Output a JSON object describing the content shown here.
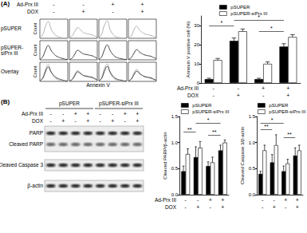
{
  "panels": [
    "(A)",
    "(B)"
  ],
  "chart_data": [
    {
      "type": "line",
      "x_label": "Annexin V",
      "y_label": "Count",
      "row_labels": [
        "pSUPER",
        "pSUPER-siPrx III",
        "Overlay"
      ],
      "treatments": [
        {
          "label": "Ad-Prx III",
          "signs": [
            "-",
            "-",
            "+",
            "+"
          ]
        },
        {
          "label": "DOX",
          "signs": [
            "-",
            "+",
            "-",
            "+"
          ]
        }
      ],
      "x": [
        0,
        1,
        2,
        3,
        4,
        5,
        6,
        7,
        8,
        9,
        10
      ],
      "xlim": [
        0,
        10
      ],
      "ylim": [
        0,
        16
      ],
      "tick_labels": false,
      "series": [
        {
          "color": "#b0b0b0",
          "values": [
            [
              0.5,
              3,
              10,
              14,
              8,
              4,
              2,
              1,
              0.5,
              0.3,
              0.2
            ],
            [
              0.3,
              2,
              6,
              9,
              7,
              5,
              4,
              3.5,
              3,
              2,
              1
            ],
            [
              0.5,
              3.5,
              11,
              14.5,
              7.5,
              3.5,
              1.5,
              0.8,
              0.4,
              0.2,
              0.1
            ],
            [
              0.3,
              2,
              7,
              10,
              7,
              5,
              3.5,
              3,
              2.5,
              1.5,
              0.8
            ]
          ]
        },
        {
          "color": "#404040",
          "values": [
            [
              0.4,
              2.5,
              8,
              12,
              8,
              5,
              3,
              2,
              1.2,
              0.6,
              0.3
            ],
            [
              0.2,
              1.5,
              5,
              8,
              6.5,
              5,
              4.5,
              4,
              3.5,
              2.5,
              1.2
            ],
            [
              0.4,
              2.5,
              8.5,
              12.5,
              8,
              4.5,
              2.5,
              1.5,
              1,
              0.5,
              0.3
            ],
            [
              0.3,
              1.8,
              5.5,
              8.5,
              6.5,
              5,
              4,
              3.5,
              3,
              2,
              1
            ]
          ]
        }
      ]
    },
    {
      "type": "bar",
      "y_label": "Annexin V positive cell (%)",
      "categories": [
        null,
        null,
        null,
        null
      ],
      "ylim": [
        0,
        35
      ],
      "yticks": [
        0,
        10,
        20,
        30
      ],
      "legend": "top",
      "series": [
        {
          "name": "pSUPER",
          "color": "#000000",
          "values": [
            2,
            22,
            2,
            19
          ],
          "errors": [
            0.5,
            1.5,
            0.5,
            1.5
          ]
        },
        {
          "name": "pSUPER-siPrx III",
          "color": "#ffffff",
          "values": [
            12,
            27,
            10,
            24
          ],
          "errors": [
            0.8,
            1.2,
            1,
            1.2
          ]
        }
      ],
      "annotations": [
        {
          "text": "*",
          "from": 0,
          "to": 1,
          "y": 30
        },
        {
          "text": "*",
          "from": 1,
          "to": 3,
          "y": 33
        },
        {
          "text": "*",
          "from": 2,
          "to": 3,
          "y": 27
        }
      ],
      "treatments": [
        {
          "label": "Ad-Prx III",
          "signs": [
            "-",
            "-",
            "+",
            "+"
          ]
        },
        {
          "label": "DOX",
          "signs": [
            "-",
            "+",
            "-",
            "+"
          ]
        }
      ]
    },
    {
      "type": "bar",
      "y_label": "Cleaved PARP/β-actin",
      "categories": [
        null,
        null,
        null,
        null
      ],
      "ylim": [
        0,
        1.5
      ],
      "yticks": [
        {
          "value": 0,
          "label": "0.0"
        },
        {
          "value": 0.5,
          "label": "0.5"
        },
        {
          "value": 1,
          "label": "1.0"
        },
        {
          "value": 1.5,
          "label": "1.5"
        }
      ],
      "legend": "top",
      "series": [
        {
          "name": "pSUPER",
          "color": "#000000",
          "values": [
            0.45,
            0.72,
            0.55,
            0.85
          ],
          "errors": [
            0.1,
            0.2,
            0.08,
            0.1
          ]
        },
        {
          "name": "pSUPER-siPrx III",
          "color": "#ffffff",
          "values": [
            0.78,
            0.9,
            0.62,
            1.0
          ],
          "errors": [
            0.1,
            0.12,
            0.1,
            0.05
          ]
        }
      ],
      "annotations": [
        {
          "text": "**",
          "from": 0,
          "to": 1,
          "y": 1.2
        },
        {
          "text": "*",
          "from": 1,
          "to": 3,
          "y": 1.38
        },
        {
          "text": "**",
          "from": 2,
          "to": 3,
          "y": 1.15
        }
      ],
      "treatments": [
        {
          "label": "Ad-Prx III",
          "signs": [
            "-",
            "-",
            "+",
            "+"
          ]
        },
        {
          "label": "DOX",
          "signs": [
            "-",
            "+",
            "-",
            "+"
          ]
        }
      ]
    },
    {
      "type": "bar",
      "y_label": "Cleaved Caspase 3/β-actin",
      "categories": [
        null,
        null,
        null,
        null
      ],
      "ylim": [
        0,
        1.5
      ],
      "yticks": [
        {
          "value": 0,
          "label": "0.0"
        },
        {
          "value": 0.5,
          "label": "0.5"
        },
        {
          "value": 1,
          "label": "1.0"
        },
        {
          "value": 1.5,
          "label": "1.5"
        }
      ],
      "legend": "top",
      "series": [
        {
          "name": "pSUPER",
          "color": "#000000",
          "values": [
            0.4,
            0.62,
            0.45,
            0.75
          ],
          "errors": [
            0.05,
            0.15,
            0.1,
            0.15
          ]
        },
        {
          "name": "pSUPER-siPrx III",
          "color": "#ffffff",
          "values": [
            0.85,
            0.95,
            0.6,
            0.85
          ],
          "errors": [
            0.1,
            0.2,
            0.08,
            0.1
          ]
        }
      ],
      "annotations": [
        {
          "text": "**",
          "from": 0,
          "to": 1,
          "y": 1.25
        },
        {
          "text": "*",
          "from": 0,
          "to": 2,
          "y": 1.38
        },
        {
          "text": "**",
          "from": 2,
          "to": 3,
          "y": 1.1
        }
      ],
      "treatments": [
        {
          "signs": [
            "-",
            "-",
            "+",
            "+"
          ]
        },
        {
          "signs": [
            "-",
            "+",
            "-",
            "+"
          ]
        }
      ]
    }
  ],
  "blot": {
    "groups": [
      "pSUPER",
      "pSUPER-siPrx III"
    ],
    "treatments": [
      {
        "label": "Ad-Prx III",
        "signs": [
          "-",
          "-",
          "+",
          "+",
          "-",
          "-",
          "+",
          "+"
        ]
      },
      {
        "label": "DOX",
        "signs": [
          "-",
          "+",
          "-",
          "+",
          "-",
          "+",
          "-",
          "+"
        ]
      }
    ],
    "bands": [
      "PARP",
      "Cleaved PARP",
      "Cleaved Caspase 3",
      "β-actin"
    ]
  }
}
